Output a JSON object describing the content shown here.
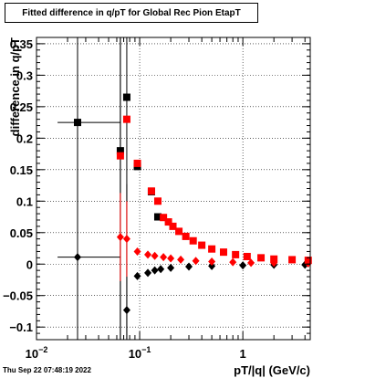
{
  "title": "Fitted difference in q/pT for Global Rec Pion EtapT",
  "timestamp": "Thu Sep 22 07:48:19 2022",
  "chart_data": {
    "type": "scatter",
    "title": "Fitted difference in q/pT for Global Rec Pion EtapT",
    "xlabel": "pT/|q| (GeV/c)",
    "ylabel": "difference in q/pT",
    "xscale": "log",
    "xlim": [
      0.01,
      4.5
    ],
    "ylim": [
      -0.12,
      0.36
    ],
    "grid": true,
    "x_ticks": [
      {
        "value": 0.01,
        "base": "10",
        "exp": "−2"
      },
      {
        "value": 0.1,
        "base": "10",
        "exp": "−1"
      },
      {
        "value": 1,
        "base": "1",
        "exp": ""
      }
    ],
    "y_ticks": [
      "−0.1",
      "−0.05",
      "0",
      "0.05",
      "0.1",
      "0.15",
      "0.2",
      "0.25",
      "0.3",
      "0.35"
    ],
    "colors": {
      "black_series": "#000000",
      "red_series": "#ff0000",
      "grid": "#000000"
    },
    "series": [
      {
        "color": "#000000",
        "marker": "square",
        "points": [
          {
            "x": 0.025,
            "y": 0.225,
            "xerr": [
              0.009,
              0.04
            ],
            "yerr": 0.4
          },
          {
            "x": 0.065,
            "y": 0.18,
            "yerr": 0.3
          },
          {
            "x": 0.075,
            "y": 0.265,
            "yerr": 0.4
          },
          {
            "x": 0.095,
            "y": 0.155
          },
          {
            "x": 0.13,
            "y": 0.115
          },
          {
            "x": 0.15,
            "y": 0.075
          }
        ]
      },
      {
        "color": "#000000",
        "marker": "diamond",
        "points": [
          {
            "x": 0.025,
            "y": 0.011,
            "xerr": [
              0.009,
              0.04
            ],
            "yerr": 0.4
          },
          {
            "x": 0.065,
            "y": 0.175,
            "yerr": 0.3
          },
          {
            "x": 0.075,
            "y": -0.073,
            "yerr": 0.2
          },
          {
            "x": 0.095,
            "y": -0.019
          },
          {
            "x": 0.12,
            "y": -0.014
          },
          {
            "x": 0.14,
            "y": -0.01
          },
          {
            "x": 0.16,
            "y": -0.008
          },
          {
            "x": 0.2,
            "y": -0.006
          },
          {
            "x": 0.3,
            "y": -0.004
          },
          {
            "x": 0.5,
            "y": -0.003
          },
          {
            "x": 1.0,
            "y": -0.002
          },
          {
            "x": 2.0,
            "y": -0.001
          },
          {
            "x": 4.0,
            "y": -0.001
          }
        ]
      },
      {
        "color": "#ff0000",
        "marker": "square",
        "points": [
          {
            "x": 0.065,
            "y": 0.172
          },
          {
            "x": 0.075,
            "y": 0.23
          },
          {
            "x": 0.095,
            "y": 0.16
          },
          {
            "x": 0.13,
            "y": 0.116
          },
          {
            "x": 0.15,
            "y": 0.1
          },
          {
            "x": 0.17,
            "y": 0.074
          },
          {
            "x": 0.19,
            "y": 0.067
          },
          {
            "x": 0.21,
            "y": 0.06
          },
          {
            "x": 0.24,
            "y": 0.052
          },
          {
            "x": 0.28,
            "y": 0.044
          },
          {
            "x": 0.33,
            "y": 0.037
          },
          {
            "x": 0.4,
            "y": 0.03
          },
          {
            "x": 0.5,
            "y": 0.024
          },
          {
            "x": 0.65,
            "y": 0.019
          },
          {
            "x": 0.85,
            "y": 0.015
          },
          {
            "x": 1.1,
            "y": 0.012
          },
          {
            "x": 1.5,
            "y": 0.01
          },
          {
            "x": 2.0,
            "y": 0.008
          },
          {
            "x": 3.0,
            "y": 0.007
          },
          {
            "x": 4.3,
            "y": 0.006
          }
        ]
      },
      {
        "color": "#ff0000",
        "marker": "diamond",
        "points": [
          {
            "x": 0.065,
            "y": 0.043,
            "yerr": 0.07
          },
          {
            "x": 0.075,
            "y": 0.04,
            "yerr": 0.06
          },
          {
            "x": 0.095,
            "y": 0.02
          },
          {
            "x": 0.12,
            "y": 0.015
          },
          {
            "x": 0.14,
            "y": 0.013
          },
          {
            "x": 0.17,
            "y": 0.011
          },
          {
            "x": 0.2,
            "y": 0.009
          },
          {
            "x": 0.25,
            "y": 0.007
          },
          {
            "x": 0.35,
            "y": 0.005
          },
          {
            "x": 0.5,
            "y": 0.004
          },
          {
            "x": 0.8,
            "y": 0.003
          },
          {
            "x": 1.2,
            "y": 0.002
          },
          {
            "x": 2.0,
            "y": 0.002
          },
          {
            "x": 4.3,
            "y": 0.001
          }
        ]
      }
    ]
  }
}
